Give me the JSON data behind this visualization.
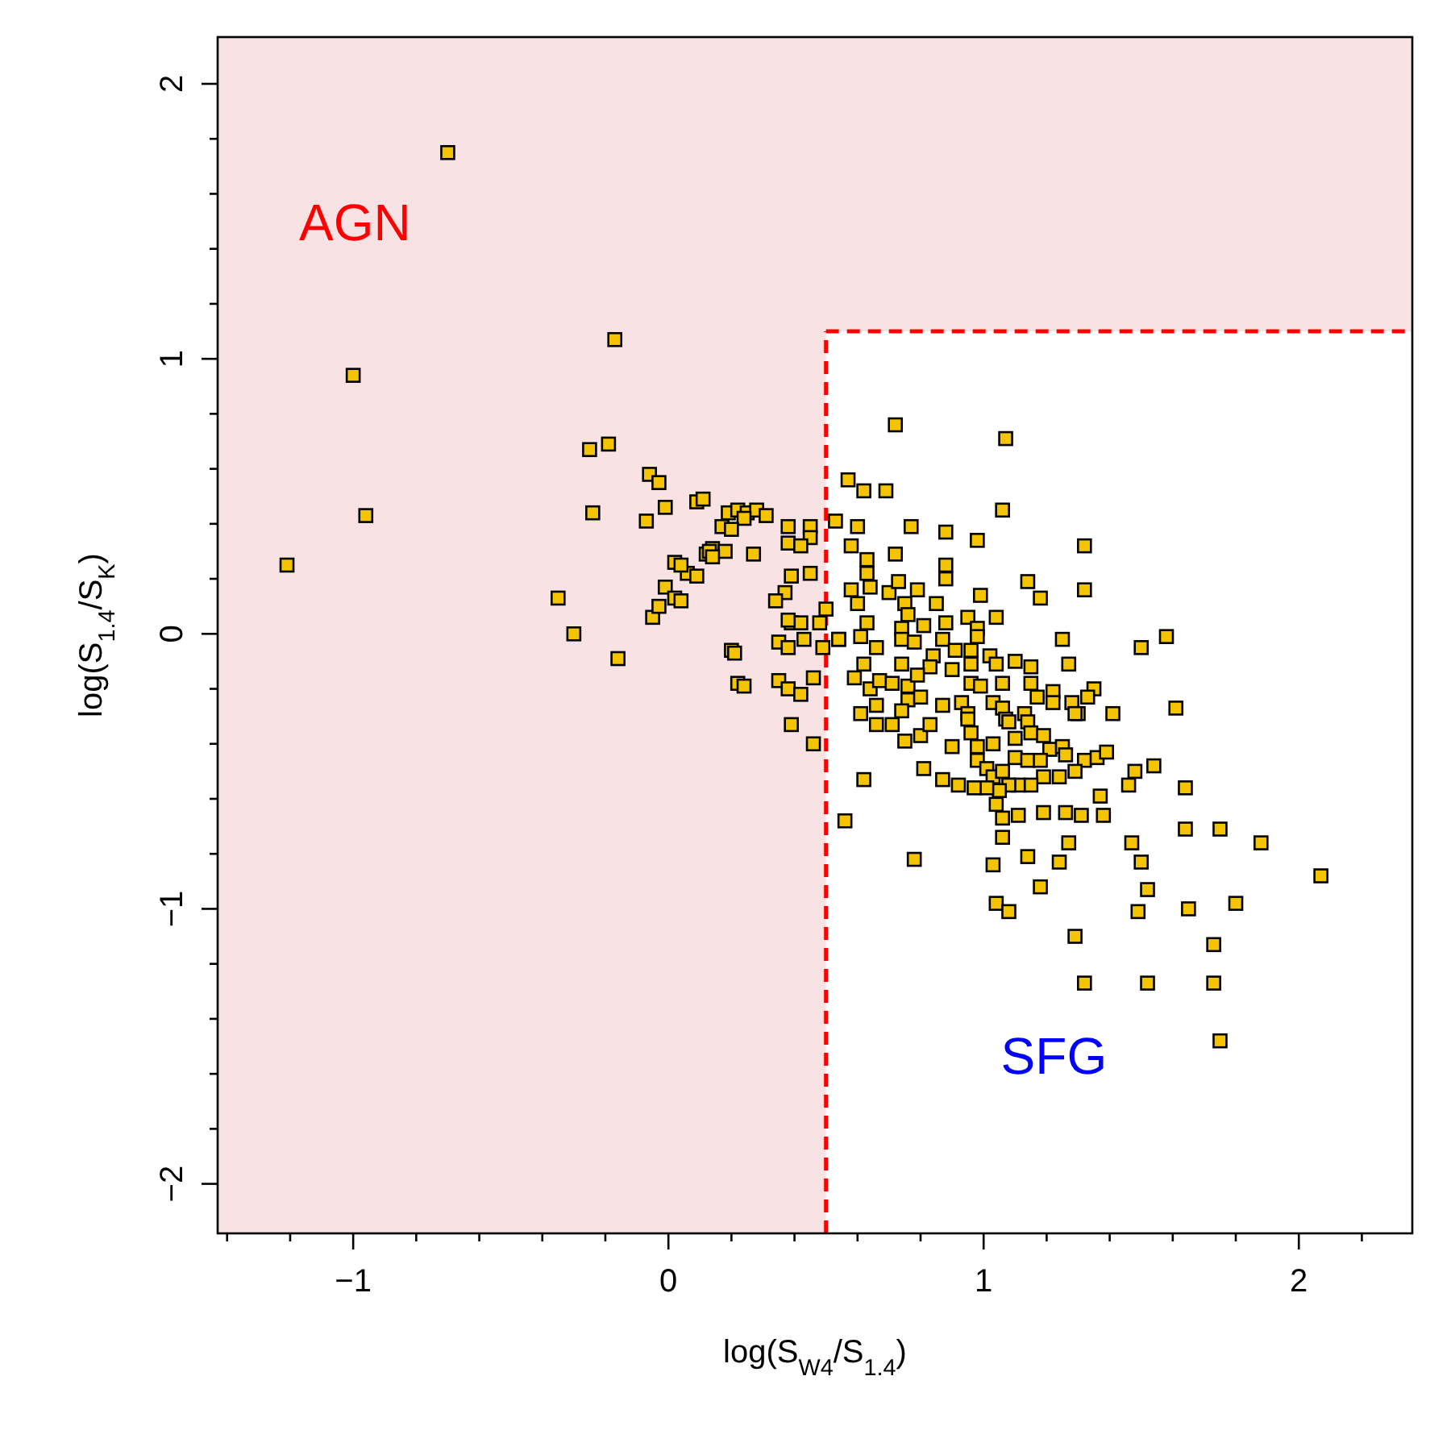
{
  "chart_data": {
    "type": "scatter",
    "xlabel": "log(S$_{W4}$/S$_{1.4}$)",
    "ylabel": "log(S$_{1.4}$/S$_{K}$)",
    "xlim": [
      -1.43,
      2.36
    ],
    "ylim": [
      -2.18,
      2.17
    ],
    "xticks": [
      {
        "value": -1.4,
        "label": null
      },
      {
        "value": -1.2,
        "label": null
      },
      {
        "value": -1,
        "label": "−1"
      },
      {
        "value": -0.8,
        "label": null
      },
      {
        "value": -0.6,
        "label": null
      },
      {
        "value": -0.4,
        "label": null
      },
      {
        "value": -0.2,
        "label": null
      },
      0,
      {
        "value": 0.2,
        "label": null
      },
      {
        "value": 0.4,
        "label": null
      },
      {
        "value": 0.6,
        "label": null
      },
      {
        "value": 0.8,
        "label": null
      },
      1,
      {
        "value": 1.2,
        "label": null
      },
      {
        "value": 1.4,
        "label": null
      },
      {
        "value": 1.6,
        "label": null
      },
      {
        "value": 1.8,
        "label": null
      },
      2,
      {
        "value": 2.2,
        "label": null
      }
    ],
    "yticks": [
      {
        "value": -2,
        "label": "−2"
      },
      {
        "value": -1.8,
        "label": null
      },
      {
        "value": -1.6,
        "label": null
      },
      {
        "value": -1.4,
        "label": null
      },
      {
        "value": -1.2,
        "label": null
      },
      {
        "value": -1,
        "label": "−1"
      },
      {
        "value": -0.8,
        "label": null
      },
      {
        "value": -0.6,
        "label": null
      },
      {
        "value": -0.4,
        "label": null
      },
      {
        "value": -0.2,
        "label": null
      },
      0,
      {
        "value": 0.2,
        "label": null
      },
      {
        "value": 0.4,
        "label": null
      },
      {
        "value": 0.6,
        "label": null
      },
      {
        "value": 0.8,
        "label": null
      },
      1,
      {
        "value": 1.2,
        "label": null
      },
      {
        "value": 1.4,
        "label": null
      },
      {
        "value": 1.6,
        "label": null
      },
      {
        "value": 1.8,
        "label": null
      },
      2
    ],
    "grid": false,
    "marker": "square",
    "bands": [
      {
        "axis": "x",
        "from": -1.43,
        "to": 0.5,
        "color": "#f8e2e4"
      },
      {
        "axis": "y",
        "from": 1.1,
        "to": 2.17,
        "color": "#f8e2e4"
      }
    ],
    "ref_lines": [
      {
        "axis": "x",
        "value": 0.5,
        "color": "#ff0000",
        "line_style": "dashed"
      },
      {
        "axis": "y",
        "value": 1.1,
        "color": "#ff0000",
        "line_style": "dashed"
      }
    ],
    "annotations": [
      "AGN",
      "SFG"
    ],
    "series": [
      {
        "color": "#f5c400",
        "x": [
          -1.21,
          -1.0,
          -0.96,
          -0.7,
          -0.17,
          -0.35,
          -0.3,
          -0.25,
          -0.24,
          -0.19,
          -0.16,
          -0.06,
          -0.03,
          -0.07,
          -0.05,
          -0.03,
          -0.01,
          -0.01,
          0.02,
          0.02,
          0.06,
          0.09,
          0.11,
          0.12,
          0.14,
          0.17,
          0.19,
          0.22,
          0.25,
          0.2,
          0.22,
          0.13,
          0.28,
          0.24,
          0.31,
          0.2,
          0.38,
          0.45,
          0.45,
          0.38,
          0.42,
          0.27,
          0.18,
          0.14,
          0.04,
          0.09,
          0.39,
          0.45,
          0.04,
          0.37,
          0.34,
          0.5,
          0.39,
          0.42,
          0.48,
          0.35,
          0.38,
          0.43,
          0.49,
          0.54,
          0.21,
          0.24,
          0.35,
          0.38,
          0.42,
          0.46,
          0.39,
          0.46,
          0.38,
          0.72,
          1.07,
          0.57,
          0.62,
          0.69,
          1.06,
          0.53,
          0.6,
          0.77,
          0.88,
          0.98,
          1.32,
          0.58,
          0.63,
          0.72,
          0.88,
          0.88,
          0.63,
          0.58,
          0.64,
          0.7,
          0.79,
          0.73,
          1.14,
          1.18,
          1.32,
          0.99,
          0.85,
          0.75,
          0.6,
          0.76,
          0.95,
          1.04,
          0.63,
          0.74,
          0.81,
          0.88,
          0.98,
          0.61,
          0.54,
          0.74,
          0.78,
          0.87,
          0.98,
          1.25,
          0.66,
          0.91,
          0.84,
          0.96,
          1.02,
          1.04,
          1.1,
          1.15,
          1.27,
          0.62,
          0.74,
          0.83,
          0.9,
          0.96,
          0.59,
          0.64,
          0.67,
          0.71,
          0.76,
          0.79,
          0.96,
          0.99,
          1.06,
          1.15,
          1.17,
          1.22,
          1.35,
          0.76,
          0.8,
          0.87,
          0.93,
          1.03,
          1.06,
          1.13,
          1.22,
          1.28,
          1.33,
          0.61,
          0.66,
          0.74,
          0.95,
          1.3,
          0.66,
          0.71,
          0.75,
          0.8,
          0.83,
          0.9,
          0.95,
          0.96,
          0.98,
          1.03,
          1.07,
          1.08,
          1.14,
          1.1,
          1.15,
          1.19,
          1.29,
          1.21,
          1.25,
          1.26,
          1.32,
          1.36,
          1.39,
          1.1,
          1.14,
          1.18,
          0.98,
          1.01,
          1.03,
          1.06,
          1.29,
          1.24,
          1.19,
          1.15,
          1.11,
          1.08,
          1.05,
          1.01,
          0.97,
          0.92,
          0.87,
          0.81,
          0.62,
          0.56,
          1.04,
          1.06,
          1.11,
          1.19,
          1.26,
          1.31,
          1.37,
          1.38,
          1.06,
          1.27,
          0.78,
          1.03,
          1.14,
          1.24,
          1.18,
          1.04,
          1.08,
          1.29,
          1.5,
          1.58,
          1.41,
          1.61,
          1.54,
          1.48,
          1.46,
          1.64,
          1.64,
          1.75,
          1.88,
          2.07,
          1.47,
          1.5,
          1.52,
          1.49,
          1.65,
          1.8,
          1.73,
          1.52,
          1.73,
          1.32,
          1.75
        ],
        "values": [
          0.25,
          0.94,
          0.43,
          1.75,
          1.07,
          0.13,
          0.0,
          0.67,
          0.44,
          0.69,
          -0.09,
          0.58,
          0.55,
          0.41,
          0.06,
          0.1,
          0.17,
          0.46,
          0.26,
          0.13,
          0.22,
          0.48,
          0.49,
          0.29,
          0.31,
          0.39,
          0.44,
          0.45,
          0.44,
          -0.06,
          -0.18,
          0.3,
          0.45,
          0.42,
          0.43,
          0.38,
          0.39,
          0.39,
          0.35,
          0.33,
          0.32,
          0.29,
          0.3,
          0.28,
          0.25,
          0.21,
          0.21,
          0.22,
          0.12,
          0.15,
          0.12,
          0.09,
          0.04,
          0.04,
          0.04,
          -0.03,
          -0.05,
          -0.02,
          -0.05,
          -0.02,
          -0.07,
          -0.19,
          -0.17,
          -0.2,
          -0.22,
          -0.16,
          -0.33,
          -0.4,
          0.05,
          0.76,
          0.71,
          0.56,
          0.52,
          0.52,
          0.45,
          0.41,
          0.39,
          0.39,
          0.37,
          0.34,
          0.32,
          0.32,
          0.27,
          0.29,
          0.25,
          0.2,
          0.22,
          0.16,
          0.17,
          0.15,
          0.16,
          0.19,
          0.19,
          0.13,
          0.16,
          0.14,
          0.11,
          0.11,
          0.11,
          0.07,
          0.06,
          0.06,
          0.04,
          0.02,
          0.03,
          0.04,
          0.02,
          -0.01,
          -0.02,
          -0.02,
          -0.03,
          -0.02,
          -0.01,
          -0.02,
          -0.05,
          -0.06,
          -0.08,
          -0.06,
          -0.08,
          -0.11,
          -0.1,
          -0.12,
          -0.11,
          -0.11,
          -0.11,
          -0.12,
          -0.13,
          -0.11,
          -0.16,
          -0.2,
          -0.17,
          -0.18,
          -0.19,
          -0.15,
          -0.18,
          -0.19,
          -0.18,
          -0.18,
          -0.23,
          -0.21,
          -0.2,
          -0.24,
          -0.23,
          -0.26,
          -0.25,
          -0.25,
          -0.27,
          -0.29,
          -0.25,
          -0.25,
          -0.23,
          -0.29,
          -0.26,
          -0.28,
          -0.29,
          -0.29,
          -0.33,
          -0.33,
          -0.39,
          -0.37,
          -0.33,
          -0.41,
          -0.31,
          -0.36,
          -0.41,
          -0.4,
          -0.31,
          -0.32,
          -0.32,
          -0.38,
          -0.36,
          -0.37,
          -0.29,
          -0.42,
          -0.41,
          -0.44,
          -0.46,
          -0.45,
          -0.43,
          -0.45,
          -0.46,
          -0.46,
          -0.46,
          -0.49,
          -0.52,
          -0.5,
          -0.5,
          -0.52,
          -0.52,
          -0.55,
          -0.55,
          -0.55,
          -0.57,
          -0.56,
          -0.56,
          -0.55,
          -0.53,
          -0.49,
          -0.53,
          -0.68,
          -0.62,
          -0.67,
          -0.66,
          -0.65,
          -0.65,
          -0.66,
          -0.59,
          -0.66,
          -0.74,
          -0.76,
          -0.82,
          -0.84,
          -0.81,
          -0.83,
          -0.92,
          -0.98,
          -1.01,
          -1.1,
          -0.05,
          -0.01,
          -0.29,
          -0.27,
          -0.48,
          -0.5,
          -0.55,
          -0.56,
          -0.71,
          -0.71,
          -0.76,
          -0.88,
          -0.76,
          -0.83,
          -0.93,
          -1.01,
          -1.0,
          -0.98,
          -1.13,
          -1.27,
          -1.27,
          -1.27,
          -1.48
        ]
      }
    ]
  }
}
